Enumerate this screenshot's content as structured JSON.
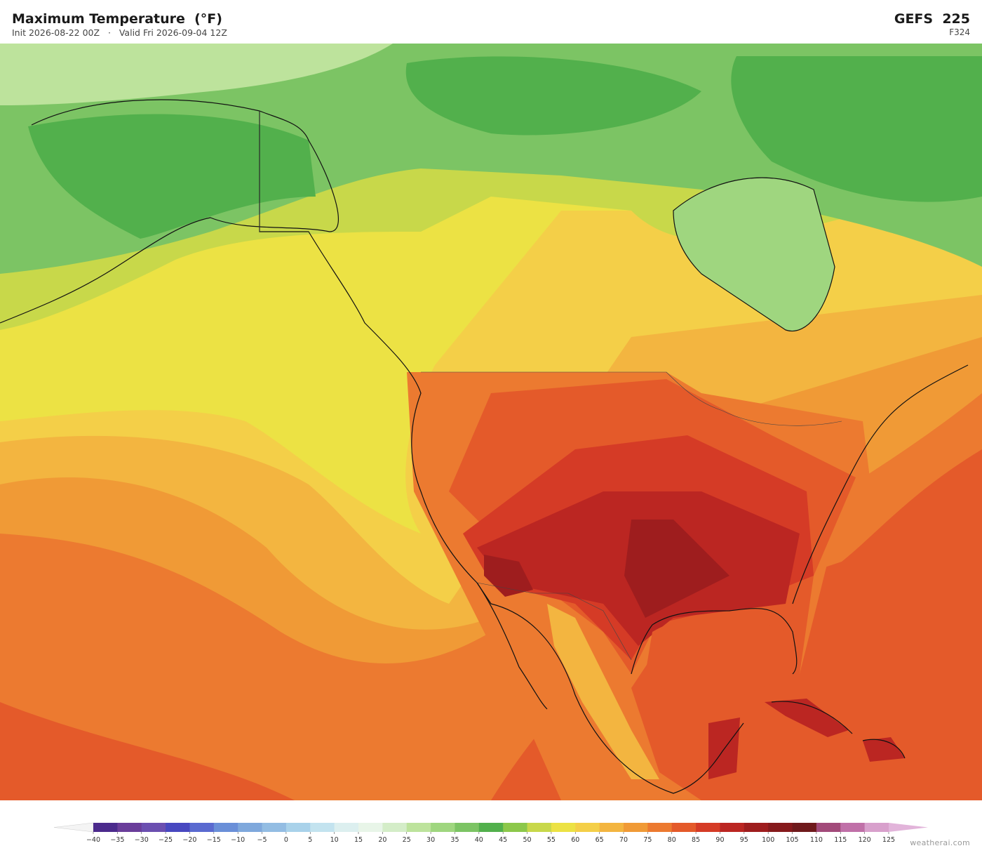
{
  "header": {
    "title": "Maximum Temperature  (°F)",
    "subtitle": "Init 2026-08-22 00Z   ·   Valid Fri 2026-09-04 12Z",
    "model": "GEFS  225",
    "forecast_hour": "F324"
  },
  "colorbar": {
    "ticks": [
      {
        "value": -40,
        "label": "−40"
      },
      {
        "value": -35,
        "label": "−35"
      },
      {
        "value": -30,
        "label": "−30"
      },
      {
        "value": -25,
        "label": "−25"
      },
      {
        "value": -20,
        "label": "−20"
      },
      {
        "value": -15,
        "label": "−15"
      },
      {
        "value": -10,
        "label": "−10"
      },
      {
        "value": -5,
        "label": "−5"
      },
      0,
      5,
      10,
      15,
      20,
      25,
      30,
      35,
      40,
      45,
      50,
      55,
      60,
      65,
      70,
      75,
      80,
      85,
      90,
      95,
      100,
      105,
      110,
      115,
      120,
      125
    ],
    "colors": [
      "#4b2a8c",
      "#6a3d9a",
      "#6b4fb0",
      "#4848c0",
      "#5a6ad0",
      "#6a8fd8",
      "#7fa8dc",
      "#93bde3",
      "#a9d2ea",
      "#c3e3ef",
      "#dcefef",
      "#e8f5e8",
      "#d4edc8",
      "#bde39c",
      "#9fd67f",
      "#7cc464",
      "#52b04c",
      "#8cc84a",
      "#c8d84a",
      "#ece244",
      "#f4cf48",
      "#f3b540",
      "#f09a36",
      "#ec7a30",
      "#e45a2a",
      "#d53b26",
      "#bb2622",
      "#9e1d1e",
      "#861a1c",
      "#6f1a1c",
      "#a24a7a",
      "#c070a8",
      "#d8a0cc"
    ],
    "under_color": "#f4f4f4",
    "over_color": "#e2b4da"
  },
  "footer": {
    "credit": "weatherai.com"
  }
}
